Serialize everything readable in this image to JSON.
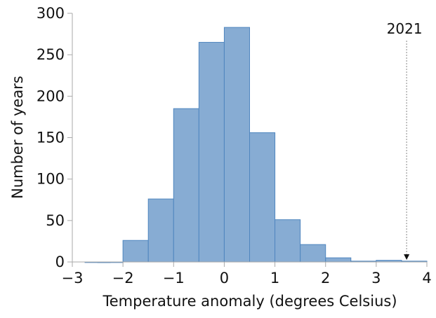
{
  "chart_data": {
    "type": "bar",
    "title": "",
    "xlabel": "Temperature anomaly (degrees Celsius)",
    "ylabel": "Number of years",
    "xlim": [
      -3,
      4
    ],
    "ylim": [
      0,
      300
    ],
    "xticks": [
      "−3",
      "−2",
      "−1",
      "0",
      "1",
      "2",
      "3",
      "4"
    ],
    "xtick_values": [
      -3,
      -2,
      -1,
      0,
      1,
      2,
      3,
      4
    ],
    "yticks": [
      "0",
      "50",
      "100",
      "150",
      "200",
      "250",
      "300"
    ],
    "ytick_values": [
      0,
      50,
      100,
      150,
      200,
      250,
      300
    ],
    "bin_width": 0.5,
    "bin_starts": [
      -2.75,
      -2.5,
      -2,
      -1.5,
      -1,
      -0.5,
      0,
      0.5,
      1,
      1.5,
      2,
      2.5,
      3,
      3.5
    ],
    "values": [
      0,
      0,
      26,
      76,
      185,
      265,
      283,
      156,
      51,
      21,
      5,
      1,
      2,
      1
    ],
    "grid": false,
    "bar_color": "#87acd3",
    "bar_edge_color": "#4f86bf",
    "annotation": {
      "label": "2021",
      "x": 3.6
    }
  }
}
